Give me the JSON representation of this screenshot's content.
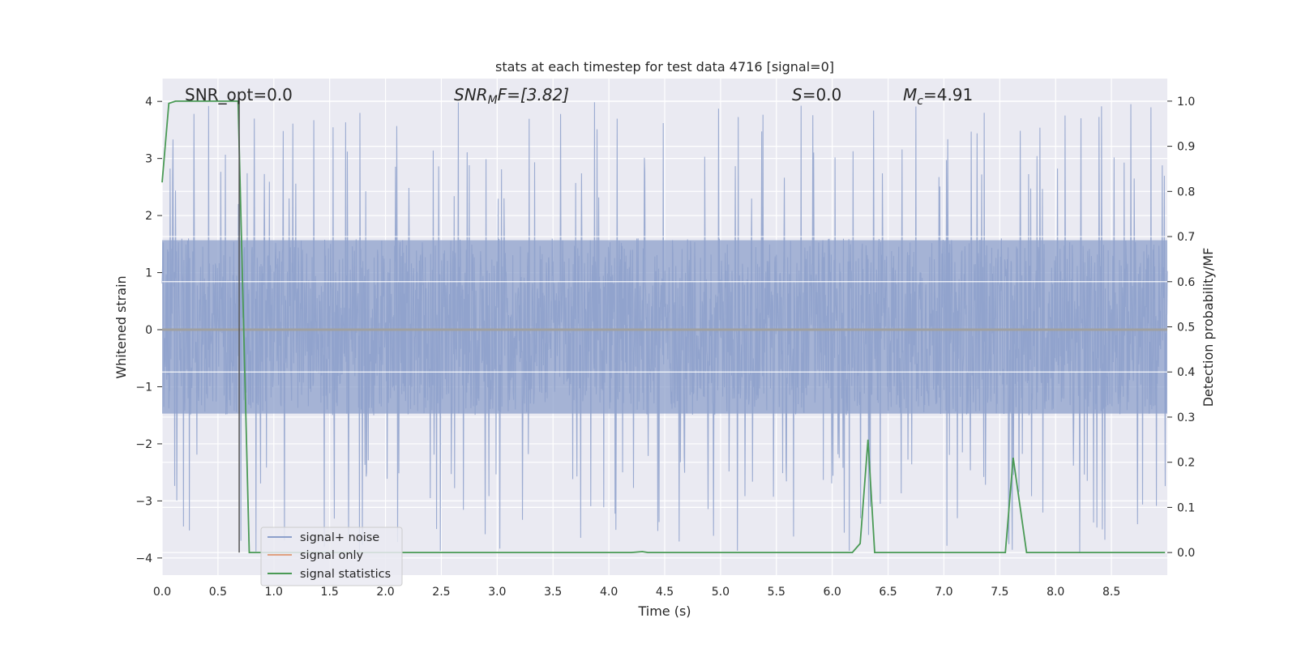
{
  "chart_data": {
    "type": "line",
    "title": "stats at each timestep for test data 4716 [signal=0]",
    "xlabel": "Time (s)",
    "ylabel": "Whitened strain",
    "y2label": "Detection probability/MF",
    "xlim": [
      0,
      9.0
    ],
    "ylim": [
      -4.3,
      4.4
    ],
    "y2lim": [
      -0.05,
      1.05
    ],
    "xticks": [
      "0.0",
      "0.5",
      "1.0",
      "1.5",
      "2.0",
      "2.5",
      "3.0",
      "3.5",
      "4.0",
      "4.5",
      "5.0",
      "5.5",
      "6.0",
      "6.5",
      "7.0",
      "7.5",
      "8.0",
      "8.5"
    ],
    "yticks": [
      "4",
      "3",
      "2",
      "1",
      "0",
      "−1",
      "−2",
      "−3",
      "−4"
    ],
    "y2ticks": [
      "1.0",
      "0.9",
      "0.8",
      "0.7",
      "0.6",
      "0.5",
      "0.4",
      "0.3",
      "0.2",
      "0.1",
      "0.0"
    ],
    "grid": true,
    "legend_placement": "lower-left",
    "annotations": {
      "snr_opt": "SNR_opt=0.0",
      "snr_mf_base": "SNR",
      "snr_mf_sub": "M",
      "snr_mf_rest": "F=[3.82]",
      "s_var": "S",
      "s_rest": "=0.0",
      "mc_var": "M",
      "mc_sub": "c",
      "mc_rest": "=4.91"
    },
    "marker_line_x": 0.69,
    "series": [
      {
        "name": "signal+ noise",
        "color": "#8da0cb",
        "noise_band": {
          "core_low": -1.5,
          "core_high": 1.6,
          "spike_max": 4.0,
          "spike_min": -3.9
        }
      },
      {
        "name": "signal only",
        "color": "#e0a080",
        "values_constant": 0.0
      },
      {
        "name": "signal statistics",
        "color": "#4a9a55",
        "axis": "right",
        "x": [
          0.0,
          0.06,
          0.12,
          0.2,
          0.6,
          0.68,
          0.78,
          0.9,
          4.2,
          4.3,
          4.35,
          6.18,
          6.25,
          6.32,
          6.38,
          7.55,
          7.62,
          7.74,
          8.98
        ],
        "values": [
          0.82,
          0.995,
          1.0,
          1.0,
          1.0,
          1.0,
          0.0,
          0.0,
          0.0,
          0.002,
          0.0,
          0.0,
          0.02,
          0.25,
          0.0,
          0.0,
          0.21,
          0.0,
          0.0
        ]
      }
    ],
    "colors": {
      "plot_bg": "#eaeaf2",
      "grid": "#ffffff",
      "marker_line": "#555555",
      "zero_line": "#a0a0a0"
    }
  }
}
